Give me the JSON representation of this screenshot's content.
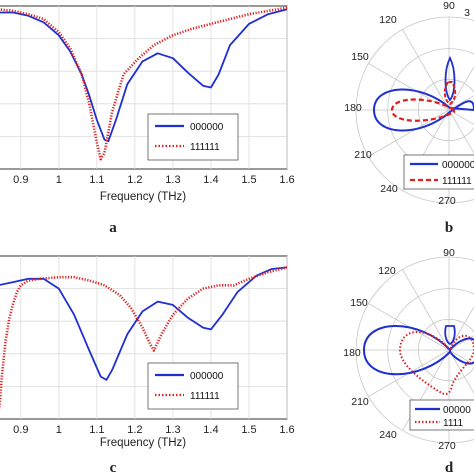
{
  "panels": [
    {
      "letter": "a"
    },
    {
      "letter": "b"
    },
    {
      "letter": "c"
    },
    {
      "letter": "d"
    }
  ],
  "chart_data": [
    {
      "id": "a",
      "type": "line",
      "xlabel": "Frequency (THz)",
      "xlim": [
        0.84,
        1.6
      ],
      "ylim": [
        0,
        1
      ],
      "xticks": [
        0.9,
        1,
        1.1,
        1.2,
        1.3,
        1.4,
        1.5,
        1.6
      ],
      "grid": true,
      "legend": {
        "placement": "right"
      },
      "series": [
        {
          "name": "000000",
          "color": "#1f2fd0",
          "style": "solid",
          "x": [
            0.84,
            0.88,
            0.92,
            0.96,
            1.0,
            1.03,
            1.06,
            1.08,
            1.1,
            1.12,
            1.13,
            1.15,
            1.18,
            1.22,
            1.26,
            1.3,
            1.34,
            1.38,
            1.4,
            1.42,
            1.45,
            1.5,
            1.55,
            1.6
          ],
          "y": [
            0.96,
            0.96,
            0.94,
            0.9,
            0.82,
            0.72,
            0.58,
            0.45,
            0.3,
            0.18,
            0.17,
            0.3,
            0.52,
            0.66,
            0.71,
            0.68,
            0.59,
            0.51,
            0.5,
            0.58,
            0.76,
            0.89,
            0.95,
            0.98
          ]
        },
        {
          "name": "111111",
          "color": "#e01f1f",
          "style": "dotted",
          "x": [
            0.84,
            0.88,
            0.92,
            0.96,
            1.0,
            1.03,
            1.06,
            1.08,
            1.1,
            1.11,
            1.12,
            1.14,
            1.17,
            1.21,
            1.25,
            1.3,
            1.35,
            1.4,
            1.45,
            1.5,
            1.55,
            1.6
          ],
          "y": [
            0.98,
            0.97,
            0.95,
            0.92,
            0.84,
            0.74,
            0.58,
            0.4,
            0.16,
            0.06,
            0.1,
            0.35,
            0.58,
            0.68,
            0.76,
            0.82,
            0.86,
            0.89,
            0.92,
            0.95,
            0.97,
            0.99
          ]
        }
      ]
    },
    {
      "id": "b",
      "type": "polar",
      "angle_labels": [
        "90",
        "120",
        "150",
        "180",
        "210",
        "240",
        "270",
        "3"
      ],
      "legend": {
        "placement": "bottom-right"
      },
      "series": [
        {
          "name": "000000",
          "color": "#1f2fd0",
          "style": "solid"
        },
        {
          "name": "111111",
          "color": "#e01f1f",
          "style": "dashed"
        }
      ]
    },
    {
      "id": "c",
      "type": "line",
      "xlabel": "Frequency (THz)",
      "xlim": [
        0.84,
        1.6
      ],
      "ylim": [
        0,
        1
      ],
      "xticks": [
        0.9,
        1,
        1.1,
        1.2,
        1.3,
        1.4,
        1.5,
        1.6
      ],
      "grid": true,
      "legend": {
        "placement": "right"
      },
      "series": [
        {
          "name": "000000",
          "color": "#1f2fd0",
          "style": "solid",
          "x": [
            0.84,
            0.88,
            0.92,
            0.96,
            1.0,
            1.04,
            1.08,
            1.11,
            1.125,
            1.14,
            1.18,
            1.22,
            1.26,
            1.3,
            1.34,
            1.38,
            1.4,
            1.43,
            1.47,
            1.52,
            1.56,
            1.6
          ],
          "y": [
            0.82,
            0.84,
            0.86,
            0.86,
            0.8,
            0.64,
            0.42,
            0.26,
            0.24,
            0.3,
            0.52,
            0.66,
            0.72,
            0.7,
            0.62,
            0.56,
            0.55,
            0.64,
            0.78,
            0.88,
            0.92,
            0.93
          ]
        },
        {
          "name": "111111",
          "color": "#e01f1f",
          "style": "dotted",
          "x": [
            0.84,
            0.845,
            0.85,
            0.86,
            0.87,
            0.88,
            0.89,
            0.9,
            0.92,
            0.95,
            1.0,
            1.04,
            1.08,
            1.12,
            1.16,
            1.19,
            1.22,
            1.24,
            1.25,
            1.27,
            1.3,
            1.34,
            1.38,
            1.42,
            1.46,
            1.5,
            1.55,
            1.6
          ],
          "y": [
            0.02,
            0.1,
            0.26,
            0.48,
            0.62,
            0.71,
            0.78,
            0.82,
            0.85,
            0.86,
            0.87,
            0.87,
            0.85,
            0.82,
            0.76,
            0.68,
            0.56,
            0.46,
            0.42,
            0.52,
            0.64,
            0.74,
            0.8,
            0.82,
            0.82,
            0.86,
            0.9,
            0.93
          ]
        }
      ]
    },
    {
      "id": "d",
      "type": "polar",
      "angle_labels": [
        "90",
        "120",
        "150",
        "180",
        "210",
        "240",
        "270"
      ],
      "legend": {
        "placement": "bottom-right"
      },
      "series": [
        {
          "name": "00000",
          "color": "#1f2fd0",
          "style": "solid"
        },
        {
          "name": "1111",
          "color": "#e01f1f",
          "style": "dotted"
        }
      ]
    }
  ]
}
